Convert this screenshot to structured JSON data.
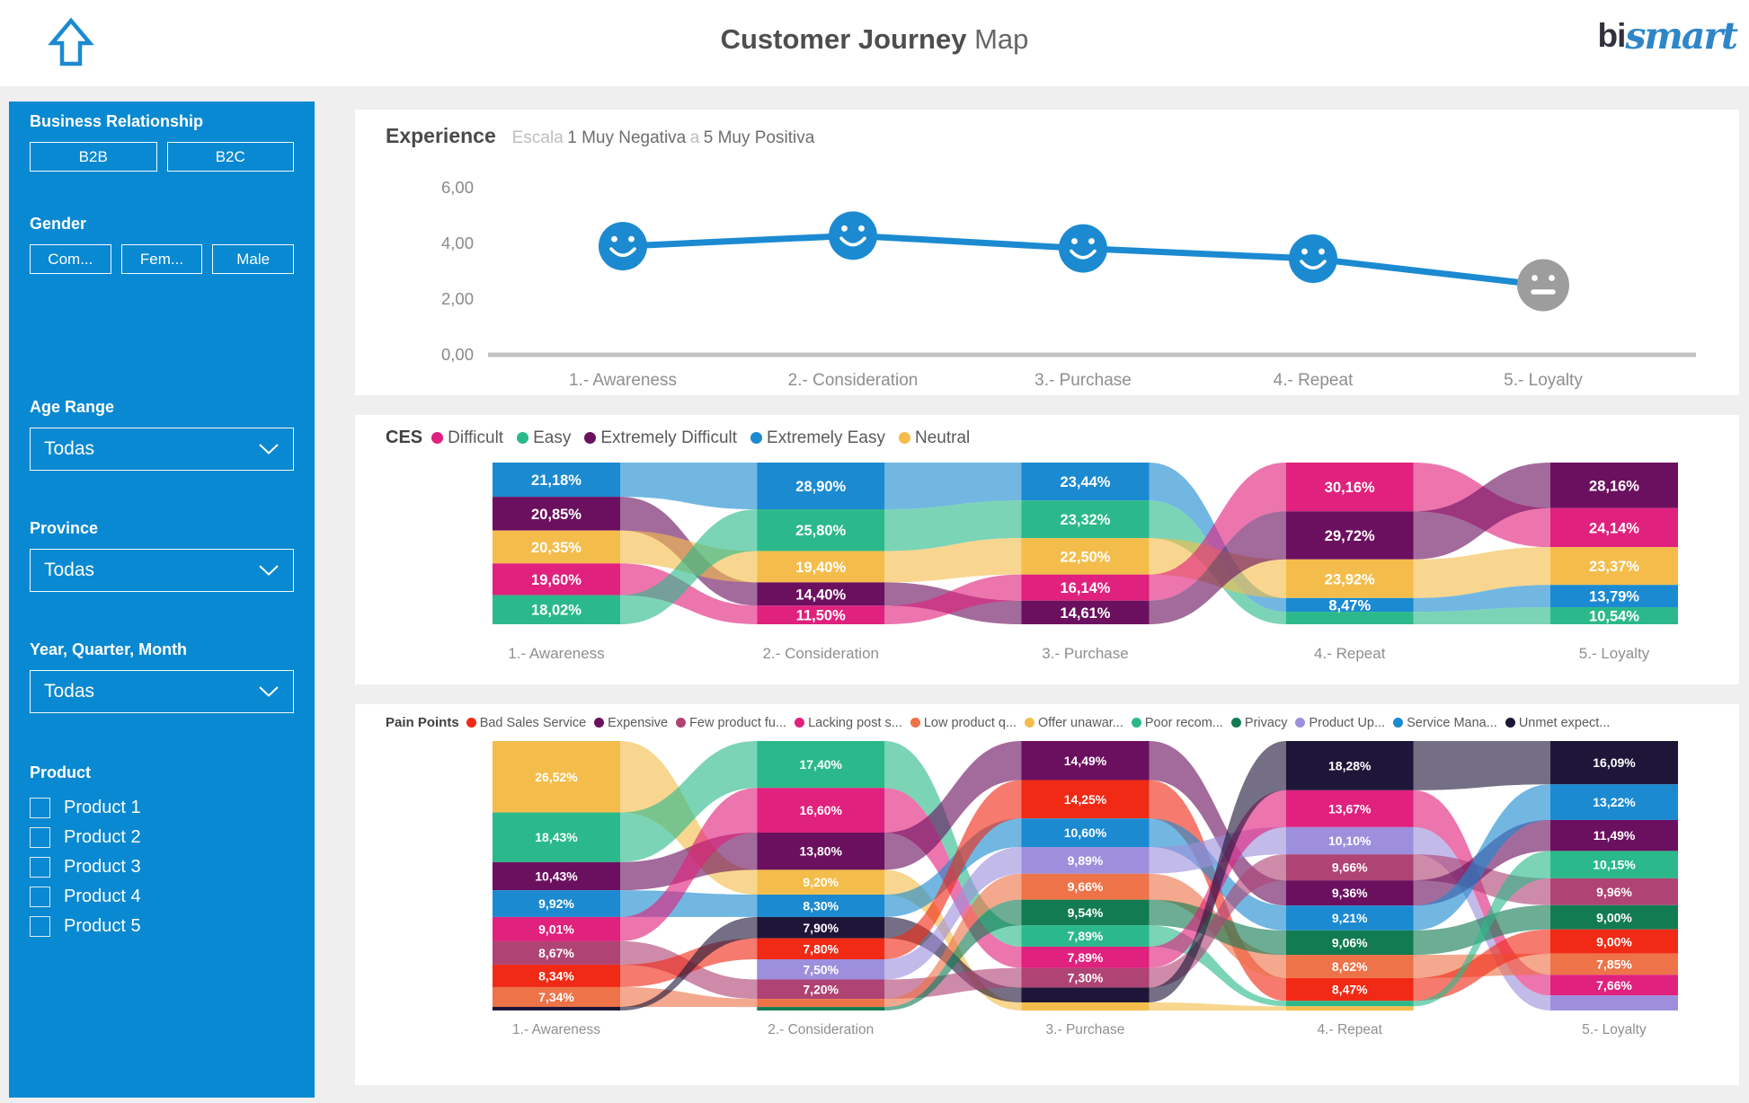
{
  "header": {
    "title_bold": "Customer Journey",
    "title_light": "Map",
    "logo_bi": "bi",
    "logo_smart": "smart"
  },
  "sidebar": {
    "background": "#0989D1",
    "sections": [
      {
        "type": "buttons",
        "label": "Business Relationship",
        "buttons": [
          "B2B",
          "B2C"
        ]
      },
      {
        "type": "buttons",
        "label": "Gender",
        "buttons": [
          "Com...",
          "Fem...",
          "Male"
        ]
      },
      {
        "type": "dropdown",
        "label": "Age Range",
        "value": "Todas"
      },
      {
        "type": "dropdown",
        "label": "Province",
        "value": "Todas"
      },
      {
        "type": "dropdown",
        "label": "Year, Quarter, Month",
        "value": "Todas"
      },
      {
        "type": "checkboxes",
        "label": "Product",
        "items": [
          {
            "label": "Product 1",
            "checked": false
          },
          {
            "label": "Product 2",
            "checked": false
          },
          {
            "label": "Product 3",
            "checked": false
          },
          {
            "label": "Product 4",
            "checked": false
          },
          {
            "label": "Product 5",
            "checked": false
          }
        ]
      }
    ]
  },
  "chart_data": [
    {
      "type": "line",
      "title": "Experience",
      "subtitle_prefix": "Escala",
      "subtitle_scale_from": "1 Muy Negativa",
      "subtitle_connector": "a",
      "subtitle_scale_to": "5 Muy Positiva",
      "categories": [
        "1.- Awareness",
        "2.- Consideration",
        "3.- Purchase",
        "4.- Repeat",
        "5.- Loyalty"
      ],
      "values": [
        3.9,
        4.28,
        3.82,
        3.45,
        2.5
      ],
      "ylim": [
        0,
        6
      ],
      "yticks": [
        {
          "value": 6,
          "label": "6,00"
        },
        {
          "value": 4,
          "label": "4,00"
        },
        {
          "value": 2,
          "label": "2,00"
        },
        {
          "value": 0,
          "label": "0,00"
        }
      ],
      "marker": "smiley-face",
      "marker_moods": [
        "happy",
        "happy",
        "happy",
        "happy",
        "neutral"
      ],
      "line_color": "#1B8AD1",
      "neutral_marker_color": "#9D9D9D"
    },
    {
      "type": "ribbon",
      "title": "CES",
      "legend": [
        {
          "key": "difficult",
          "label": "Difficult",
          "color": "#E0217D"
        },
        {
          "key": "easy",
          "label": "Easy",
          "color": "#2BB98B"
        },
        {
          "key": "extremely_difficult",
          "label": "Extremely Difficult",
          "color": "#6B105F"
        },
        {
          "key": "extremely_easy",
          "label": "Extremely Easy",
          "color": "#1B8AD1"
        },
        {
          "key": "neutral",
          "label": "Neutral",
          "color": "#F4BD4B"
        }
      ],
      "palette": {
        "difficult": "#E0217D",
        "easy": "#2BB98B",
        "extremely_difficult": "#6B105F",
        "extremely_easy": "#1B8AD1",
        "neutral": "#F4BD4B"
      },
      "categories": [
        "1.- Awareness",
        "2.- Consideration",
        "3.- Purchase",
        "4.- Repeat",
        "5.- Loyalty"
      ],
      "columns": [
        [
          {
            "key": "extremely_easy",
            "value": 21.18,
            "label": "21,18%"
          },
          {
            "key": "extremely_difficult",
            "value": 20.85,
            "label": "20,85%"
          },
          {
            "key": "neutral",
            "value": 20.35,
            "label": "20,35%"
          },
          {
            "key": "difficult",
            "value": 19.6,
            "label": "19,60%"
          },
          {
            "key": "easy",
            "value": 18.02,
            "label": "18,02%"
          }
        ],
        [
          {
            "key": "extremely_easy",
            "value": 28.9,
            "label": "28,90%"
          },
          {
            "key": "easy",
            "value": 25.8,
            "label": "25,80%"
          },
          {
            "key": "neutral",
            "value": 19.4,
            "label": "19,40%"
          },
          {
            "key": "extremely_difficult",
            "value": 14.4,
            "label": "14,40%"
          },
          {
            "key": "difficult",
            "value": 11.5,
            "label": "11,50%"
          }
        ],
        [
          {
            "key": "extremely_easy",
            "value": 23.44,
            "label": "23,44%"
          },
          {
            "key": "easy",
            "value": 23.32,
            "label": "23,32%"
          },
          {
            "key": "neutral",
            "value": 22.5,
            "label": "22,50%"
          },
          {
            "key": "difficult",
            "value": 16.14,
            "label": "16,14%"
          },
          {
            "key": "extremely_difficult",
            "value": 14.61,
            "label": "14,61%"
          }
        ],
        [
          {
            "key": "difficult",
            "value": 30.16,
            "label": "30,16%"
          },
          {
            "key": "extremely_difficult",
            "value": 29.72,
            "label": "29,72%"
          },
          {
            "key": "neutral",
            "value": 23.92,
            "label": "23,92%"
          },
          {
            "key": "extremely_easy",
            "value": 8.47,
            "label": "8,47%"
          },
          {
            "key": "easy",
            "value": 7.73,
            "label": ""
          }
        ],
        [
          {
            "key": "extremely_difficult",
            "value": 28.16,
            "label": "28,16%"
          },
          {
            "key": "difficult",
            "value": 24.14,
            "label": "24,14%"
          },
          {
            "key": "neutral",
            "value": 23.37,
            "label": "23,37%"
          },
          {
            "key": "extremely_easy",
            "value": 13.79,
            "label": "13,79%"
          },
          {
            "key": "easy",
            "value": 10.54,
            "label": "10,54%"
          }
        ]
      ]
    },
    {
      "type": "ribbon",
      "title": "Pain Points",
      "legend": [
        {
          "key": "bad_sales_service",
          "label": "Bad Sales Service",
          "color": "#F02A15"
        },
        {
          "key": "expensive",
          "label": "Expensive",
          "color": "#6B105F"
        },
        {
          "key": "few_product",
          "label": "Few product fu...",
          "color": "#AF4374"
        },
        {
          "key": "lacking_post",
          "label": "Lacking post s...",
          "color": "#E0217D"
        },
        {
          "key": "low_product",
          "label": "Low product q...",
          "color": "#EE7348"
        },
        {
          "key": "offer_unaware",
          "label": "Offer unawar...",
          "color": "#F4BD4B"
        },
        {
          "key": "poor_recom",
          "label": "Poor recom...",
          "color": "#2BB98B"
        },
        {
          "key": "privacy",
          "label": "Privacy",
          "color": "#127B52"
        },
        {
          "key": "product_up",
          "label": "Product Up...",
          "color": "#9D8FDC"
        },
        {
          "key": "service_mana",
          "label": "Service Mana...",
          "color": "#1B8AD1"
        },
        {
          "key": "unmet_expect",
          "label": "Unmet expect...",
          "color": "#1E1638"
        }
      ],
      "palette": {
        "bad_sales_service": "#F02A15",
        "expensive": "#6B105F",
        "few_product": "#AF4374",
        "lacking_post": "#E0217D",
        "low_product": "#EE7348",
        "offer_unaware": "#F4BD4B",
        "poor_recom": "#2BB98B",
        "privacy": "#127B52",
        "product_up": "#9D8FDC",
        "service_mana": "#1B8AD1",
        "unmet_expect": "#1E1638"
      },
      "categories": [
        "1.- Awareness",
        "2.- Consideration",
        "3.- Purchase",
        "4.- Repeat",
        "5.- Loyalty"
      ],
      "columns": [
        [
          {
            "key": "offer_unaware",
            "value": 26.52,
            "label": "26,52%"
          },
          {
            "key": "poor_recom",
            "value": 18.43,
            "label": "18,43%"
          },
          {
            "key": "expensive",
            "value": 10.43,
            "label": "10,43%"
          },
          {
            "key": "service_mana",
            "value": 9.92,
            "label": "9,92%"
          },
          {
            "key": "lacking_post",
            "value": 9.01,
            "label": "9,01%"
          },
          {
            "key": "few_product",
            "value": 8.67,
            "label": "8,67%"
          },
          {
            "key": "bad_sales_service",
            "value": 8.34,
            "label": "8,34%"
          },
          {
            "key": "low_product",
            "value": 7.34,
            "label": "7,34%"
          },
          {
            "key": "unmet_expect",
            "value": 1.34,
            "label": ""
          }
        ],
        [
          {
            "key": "poor_recom",
            "value": 17.4,
            "label": "17,40%"
          },
          {
            "key": "lacking_post",
            "value": 16.6,
            "label": "16,60%"
          },
          {
            "key": "expensive",
            "value": 13.8,
            "label": "13,80%"
          },
          {
            "key": "offer_unaware",
            "value": 9.2,
            "label": "9,20%"
          },
          {
            "key": "service_mana",
            "value": 8.3,
            "label": "8,30%"
          },
          {
            "key": "unmet_expect",
            "value": 7.9,
            "label": "7,90%"
          },
          {
            "key": "bad_sales_service",
            "value": 7.8,
            "label": "7,80%"
          },
          {
            "key": "product_up",
            "value": 7.5,
            "label": "7,50%"
          },
          {
            "key": "few_product",
            "value": 7.2,
            "label": "7,20%"
          },
          {
            "key": "low_product",
            "value": 3.0,
            "label": ""
          },
          {
            "key": "privacy",
            "value": 1.3,
            "label": ""
          }
        ],
        [
          {
            "key": "expensive",
            "value": 14.49,
            "label": "14,49%"
          },
          {
            "key": "bad_sales_service",
            "value": 14.25,
            "label": "14,25%"
          },
          {
            "key": "service_mana",
            "value": 10.6,
            "label": "10,60%"
          },
          {
            "key": "product_up",
            "value": 9.89,
            "label": "9,89%"
          },
          {
            "key": "low_product",
            "value": 9.66,
            "label": "9,66%"
          },
          {
            "key": "privacy",
            "value": 9.54,
            "label": "9,54%"
          },
          {
            "key": "poor_recom",
            "value": 7.89,
            "label": "7,89%"
          },
          {
            "key": "lacking_post",
            "value": 7.89,
            "label": "7,89%"
          },
          {
            "key": "few_product",
            "value": 7.3,
            "label": "7,30%"
          },
          {
            "key": "unmet_expect",
            "value": 5.5,
            "label": ""
          },
          {
            "key": "offer_unaware",
            "value": 2.99,
            "label": ""
          }
        ],
        [
          {
            "key": "unmet_expect",
            "value": 18.28,
            "label": "18,28%"
          },
          {
            "key": "lacking_post",
            "value": 13.67,
            "label": "13,67%"
          },
          {
            "key": "product_up",
            "value": 10.1,
            "label": "10,10%"
          },
          {
            "key": "few_product",
            "value": 9.66,
            "label": "9,66%"
          },
          {
            "key": "expensive",
            "value": 9.36,
            "label": "9,36%"
          },
          {
            "key": "service_mana",
            "value": 9.21,
            "label": "9,21%"
          },
          {
            "key": "privacy",
            "value": 9.06,
            "label": "9,06%"
          },
          {
            "key": "low_product",
            "value": 8.62,
            "label": "8,62%"
          },
          {
            "key": "bad_sales_service",
            "value": 8.47,
            "label": "8,47%"
          },
          {
            "key": "poor_recom",
            "value": 2.0,
            "label": ""
          },
          {
            "key": "offer_unaware",
            "value": 1.57,
            "label": ""
          }
        ],
        [
          {
            "key": "unmet_expect",
            "value": 16.09,
            "label": "16,09%"
          },
          {
            "key": "service_mana",
            "value": 13.22,
            "label": "13,22%"
          },
          {
            "key": "expensive",
            "value": 11.49,
            "label": "11,49%"
          },
          {
            "key": "poor_recom",
            "value": 10.15,
            "label": "10,15%"
          },
          {
            "key": "few_product",
            "value": 9.96,
            "label": "9,96%"
          },
          {
            "key": "privacy",
            "value": 9.0,
            "label": "9,00%"
          },
          {
            "key": "bad_sales_service",
            "value": 9.0,
            "label": "9,00%"
          },
          {
            "key": "low_product",
            "value": 7.85,
            "label": "7,85%"
          },
          {
            "key": "lacking_post",
            "value": 7.66,
            "label": "7,66%"
          },
          {
            "key": "product_up",
            "value": 5.58,
            "label": ""
          }
        ]
      ]
    }
  ]
}
